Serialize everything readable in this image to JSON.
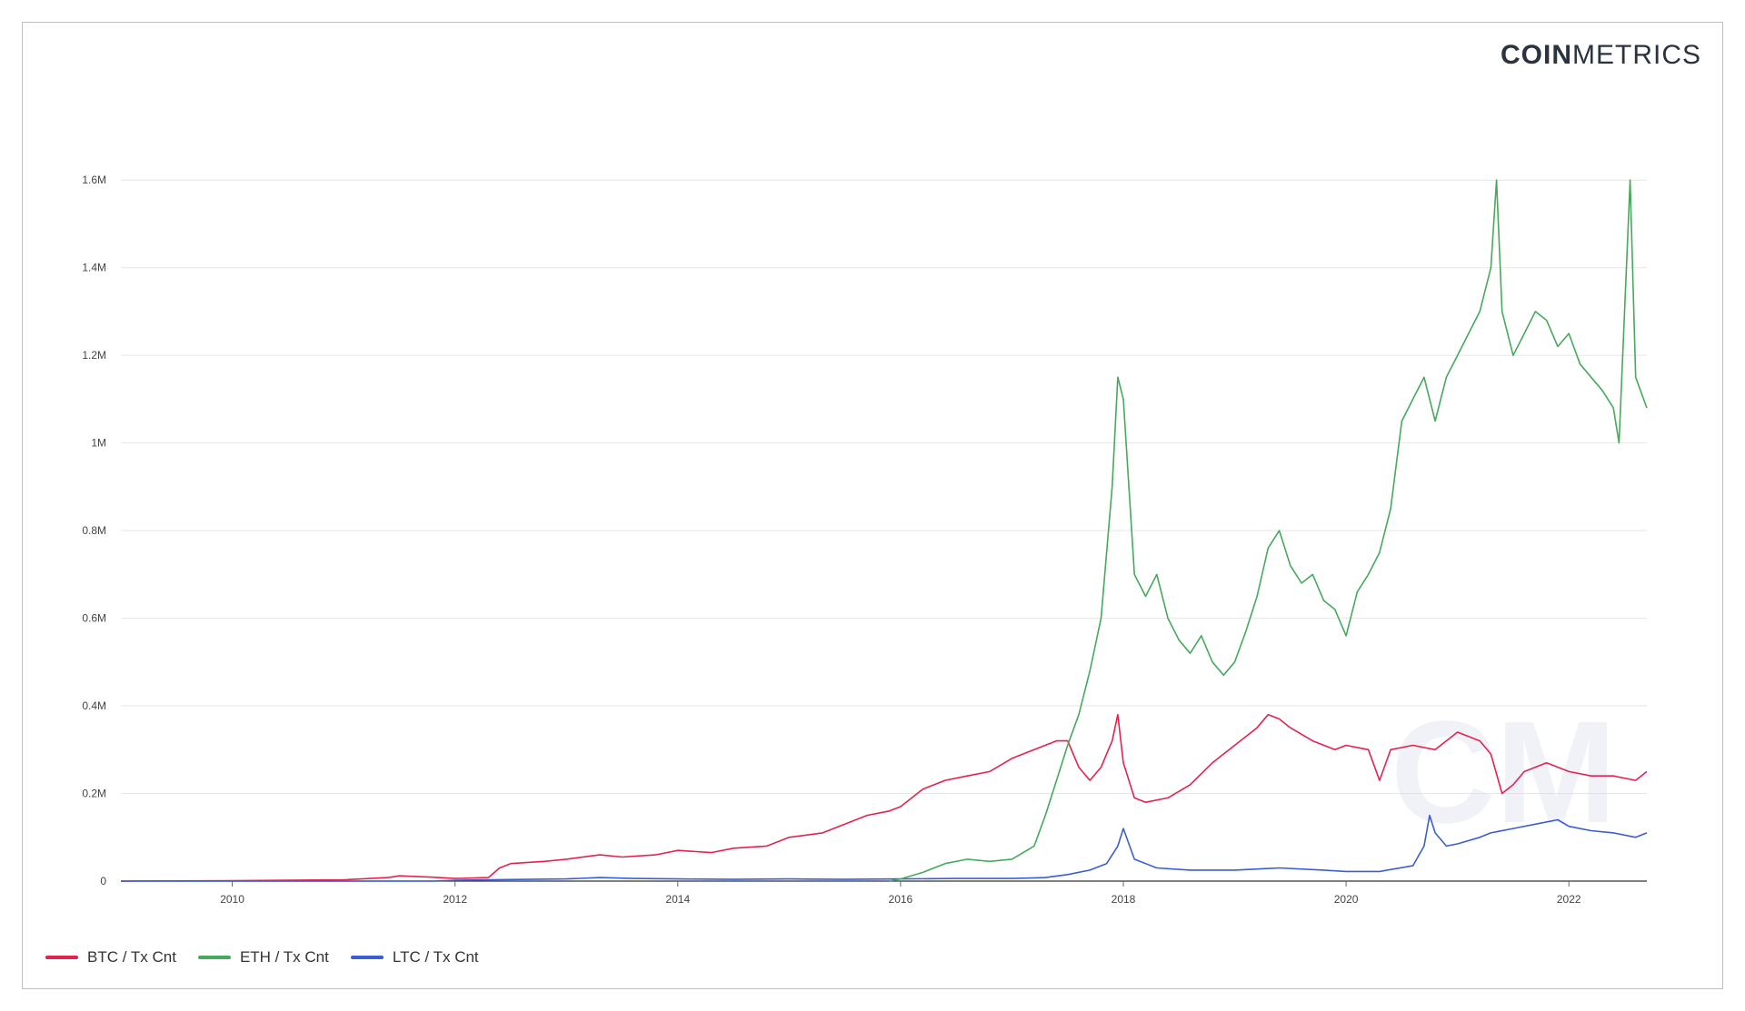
{
  "logo": {
    "bold": "COIN",
    "thin": "METRICS"
  },
  "watermark": "CM",
  "legend": [
    {
      "label": "BTC / Tx Cnt",
      "color": "#e3234e"
    },
    {
      "label": "ETH / Tx Cnt",
      "color": "#47a95c"
    },
    {
      "label": "LTC / Tx Cnt",
      "color": "#3a5ed1"
    }
  ],
  "chart_data": {
    "type": "line",
    "title": "",
    "xlabel": "",
    "ylabel": "",
    "xlim": [
      2009.0,
      2022.7
    ],
    "ylim": [
      0,
      1700000
    ],
    "grid": true,
    "legend_position": "bottom-left",
    "x_ticks": [
      2010,
      2012,
      2014,
      2016,
      2018,
      2020,
      2022
    ],
    "x_tick_labels": [
      "2010",
      "2012",
      "2014",
      "2016",
      "2018",
      "2020",
      "2022"
    ],
    "y_ticks": [
      0,
      200000,
      400000,
      600000,
      800000,
      1000000,
      1200000,
      1400000,
      1600000
    ],
    "y_tick_labels": [
      "0",
      "0.2M",
      "0.4M",
      "0.6M",
      "0.8M",
      "1M",
      "1.2M",
      "1.4M",
      "1.6M"
    ],
    "series": [
      {
        "name": "BTC / Tx Cnt",
        "color": "#e3234e",
        "x": [
          2009.0,
          2010.0,
          2011.0,
          2011.4,
          2011.5,
          2011.8,
          2012.0,
          2012.3,
          2012.4,
          2012.5,
          2012.8,
          2013.0,
          2013.3,
          2013.5,
          2013.8,
          2014.0,
          2014.3,
          2014.5,
          2014.8,
          2015.0,
          2015.3,
          2015.5,
          2015.7,
          2015.9,
          2016.0,
          2016.2,
          2016.4,
          2016.6,
          2016.8,
          2017.0,
          2017.2,
          2017.4,
          2017.5,
          2017.6,
          2017.7,
          2017.8,
          2017.9,
          2017.95,
          2018.0,
          2018.1,
          2018.2,
          2018.4,
          2018.6,
          2018.8,
          2019.0,
          2019.2,
          2019.3,
          2019.4,
          2019.5,
          2019.7,
          2019.9,
          2020.0,
          2020.2,
          2020.3,
          2020.4,
          2020.6,
          2020.8,
          2021.0,
          2021.2,
          2021.3,
          2021.4,
          2021.5,
          2021.6,
          2021.8,
          2022.0,
          2022.2,
          2022.4,
          2022.6,
          2022.7
        ],
        "y": [
          0,
          1000,
          3000,
          8000,
          12000,
          9000,
          6000,
          8000,
          30000,
          40000,
          45000,
          50000,
          60000,
          55000,
          60000,
          70000,
          65000,
          75000,
          80000,
          100000,
          110000,
          130000,
          150000,
          160000,
          170000,
          210000,
          230000,
          240000,
          250000,
          280000,
          300000,
          320000,
          320000,
          260000,
          230000,
          260000,
          320000,
          380000,
          270000,
          190000,
          180000,
          190000,
          220000,
          270000,
          310000,
          350000,
          380000,
          370000,
          350000,
          320000,
          300000,
          310000,
          300000,
          230000,
          300000,
          310000,
          300000,
          340000,
          320000,
          290000,
          200000,
          220000,
          250000,
          270000,
          250000,
          240000,
          240000,
          230000,
          250000
        ]
      },
      {
        "name": "ETH / Tx Cnt",
        "color": "#47a95c",
        "x": [
          2015.9,
          2016.0,
          2016.2,
          2016.4,
          2016.6,
          2016.8,
          2017.0,
          2017.2,
          2017.3,
          2017.4,
          2017.5,
          2017.6,
          2017.7,
          2017.8,
          2017.9,
          2017.95,
          2018.0,
          2018.05,
          2018.1,
          2018.2,
          2018.3,
          2018.4,
          2018.5,
          2018.6,
          2018.7,
          2018.8,
          2018.9,
          2019.0,
          2019.1,
          2019.2,
          2019.3,
          2019.4,
          2019.5,
          2019.6,
          2019.7,
          2019.8,
          2019.9,
          2020.0,
          2020.1,
          2020.2,
          2020.3,
          2020.4,
          2020.5,
          2020.6,
          2020.7,
          2020.8,
          2020.9,
          2021.0,
          2021.1,
          2021.2,
          2021.3,
          2021.35,
          2021.4,
          2021.5,
          2021.6,
          2021.7,
          2021.8,
          2021.9,
          2022.0,
          2022.1,
          2022.2,
          2022.3,
          2022.4,
          2022.45,
          2022.5,
          2022.55,
          2022.6,
          2022.7
        ],
        "y": [
          0,
          5000,
          20000,
          40000,
          50000,
          45000,
          50000,
          80000,
          150000,
          230000,
          310000,
          380000,
          480000,
          600000,
          900000,
          1150000,
          1100000,
          900000,
          700000,
          650000,
          700000,
          600000,
          550000,
          520000,
          560000,
          500000,
          470000,
          500000,
          570000,
          650000,
          760000,
          800000,
          720000,
          680000,
          700000,
          640000,
          620000,
          560000,
          660000,
          700000,
          750000,
          850000,
          1050000,
          1100000,
          1150000,
          1050000,
          1150000,
          1200000,
          1250000,
          1300000,
          1400000,
          1600000,
          1300000,
          1200000,
          1250000,
          1300000,
          1280000,
          1220000,
          1250000,
          1180000,
          1150000,
          1120000,
          1080000,
          1000000,
          1300000,
          1600000,
          1150000,
          1080000
        ]
      },
      {
        "name": "LTC / Tx Cnt",
        "color": "#3a5ed1",
        "x": [
          2009.0,
          2011.8,
          2012.0,
          2013.0,
          2013.3,
          2013.6,
          2014.0,
          2014.5,
          2015.0,
          2015.5,
          2016.0,
          2016.5,
          2017.0,
          2017.3,
          2017.5,
          2017.7,
          2017.85,
          2017.95,
          2018.0,
          2018.1,
          2018.3,
          2018.6,
          2019.0,
          2019.4,
          2019.8,
          2020.0,
          2020.3,
          2020.6,
          2020.7,
          2020.75,
          2020.8,
          2020.9,
          2021.0,
          2021.2,
          2021.3,
          2021.5,
          2021.7,
          2021.9,
          2022.0,
          2022.2,
          2022.4,
          2022.6,
          2022.7
        ],
        "y": [
          0,
          0,
          2000,
          5000,
          8000,
          6000,
          5000,
          4000,
          5000,
          4000,
          5000,
          6000,
          6000,
          8000,
          15000,
          25000,
          40000,
          80000,
          120000,
          50000,
          30000,
          25000,
          25000,
          30000,
          25000,
          22000,
          22000,
          35000,
          80000,
          150000,
          110000,
          80000,
          85000,
          100000,
          110000,
          120000,
          130000,
          140000,
          125000,
          115000,
          110000,
          100000,
          110000
        ]
      }
    ]
  }
}
